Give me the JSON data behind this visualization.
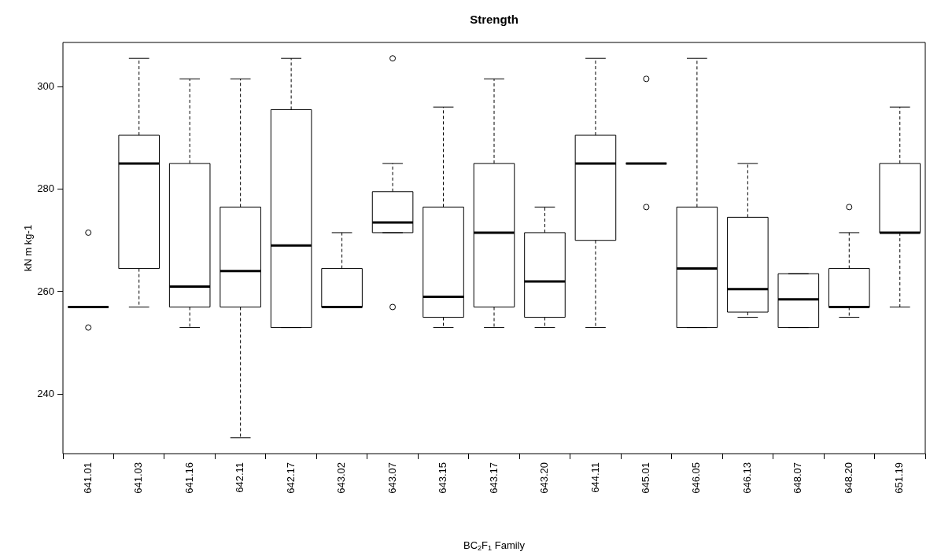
{
  "chart_data": {
    "type": "box",
    "title": "Strength",
    "xlabel": "BC$_{2}$F$_{1}$ Family",
    "ylabel": "kN m kg-1",
    "categories": [
      "641.01",
      "641.03",
      "641.16",
      "642.11",
      "642.17",
      "643.02",
      "643.07",
      "643.15",
      "643.17",
      "643.20",
      "644.11",
      "645.01",
      "646.05",
      "646.13",
      "648.07",
      "648.20",
      "651.19"
    ],
    "boxes": [
      {
        "low": 257,
        "q1": 257,
        "median": 257,
        "q3": 257,
        "high": 257,
        "outliers": [
          271.5,
          253
        ]
      },
      {
        "low": 257,
        "q1": 264.5,
        "median": 285,
        "q3": 290.5,
        "high": 305.5
      },
      {
        "low": 253,
        "q1": 257,
        "median": 261,
        "q3": 285,
        "high": 301.5
      },
      {
        "low": 231.5,
        "q1": 257,
        "median": 264,
        "q3": 276.5,
        "high": 301.5
      },
      {
        "low": 253,
        "q1": 253,
        "median": 269,
        "q3": 295.5,
        "high": 305.5
      },
      {
        "low": 257,
        "q1": 257,
        "median": 257,
        "q3": 264.5,
        "high": 271.5
      },
      {
        "low": 271.5,
        "q1": 271.5,
        "median": 273.5,
        "q3": 279.5,
        "high": 285,
        "outliers": [
          305.5,
          257
        ]
      },
      {
        "low": 253,
        "q1": 255,
        "median": 259,
        "q3": 276.5,
        "high": 296
      },
      {
        "low": 253,
        "q1": 257,
        "median": 271.5,
        "q3": 285,
        "high": 301.5
      },
      {
        "low": 253,
        "q1": 255,
        "median": 262,
        "q3": 271.5,
        "high": 276.5
      },
      {
        "low": 253,
        "q1": 270,
        "median": 285,
        "q3": 290.5,
        "high": 305.5
      },
      {
        "low": 285,
        "q1": 285,
        "median": 285,
        "q3": 285,
        "high": 285,
        "outliers": [
          301.5,
          276.5
        ]
      },
      {
        "low": 253,
        "q1": 253,
        "median": 264.5,
        "q3": 276.5,
        "high": 305.5
      },
      {
        "low": 255,
        "q1": 256,
        "median": 260.5,
        "q3": 274.5,
        "high": 285
      },
      {
        "low": 253,
        "q1": 253,
        "median": 258.5,
        "q3": 263.5,
        "high": 263.5
      },
      {
        "low": 255,
        "q1": 257,
        "median": 257,
        "q3": 264.5,
        "high": 271.5,
        "outliers": [
          276.5
        ]
      },
      {
        "low": 257,
        "q1": 271.5,
        "median": 271.5,
        "q3": 285,
        "high": 296
      }
    ],
    "ylim": [
      228.4,
      308.6
    ],
    "yticks": [
      240,
      260,
      280,
      300
    ]
  }
}
